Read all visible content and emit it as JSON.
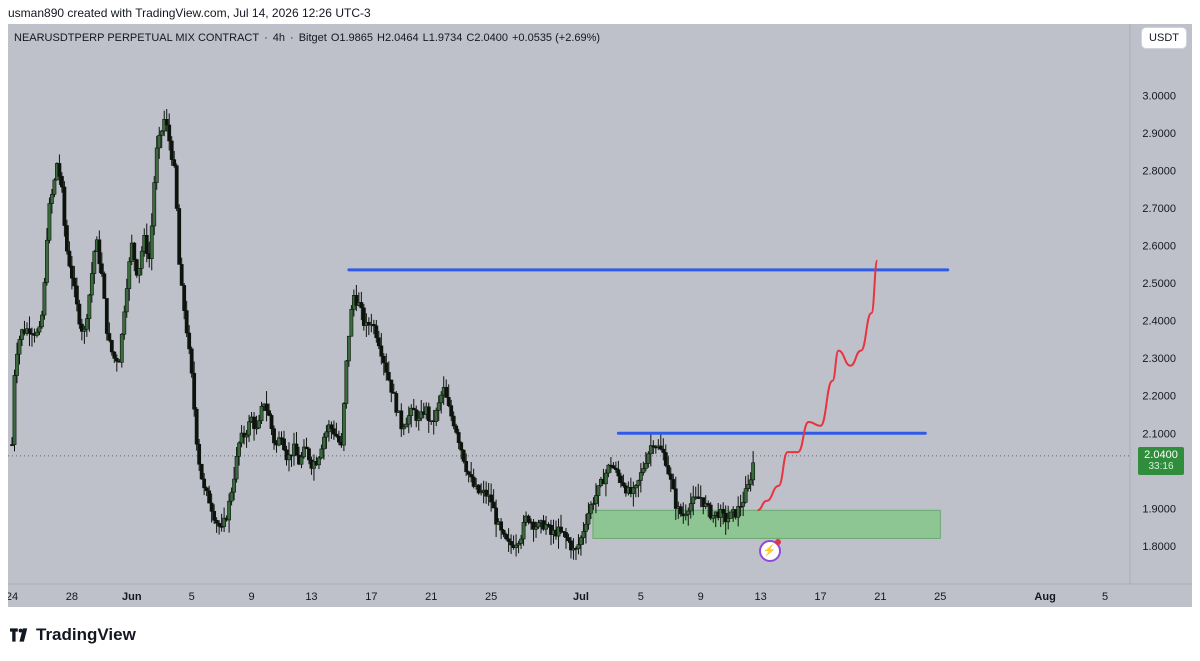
{
  "caption": "usman890 created with TradingView.com, Jul 14, 2026 12:26 UTC-3",
  "legend": {
    "symbol": "NEARUSDTPERP PERPETUAL MIX CONTRACT",
    "interval": "4h",
    "exchange": "Bitget",
    "open": "O1.9865",
    "high": "H2.0464",
    "low": "L1.9734",
    "close": "C2.0400",
    "change": "+0.0535 (+2.69%)"
  },
  "currency_button": "USDT",
  "last_price": "2.0400",
  "countdown": "33:16",
  "brand": "TradingView",
  "colors": {
    "background": "#bfc1ca",
    "candle": "#0d130d",
    "candle_up_body": "#3a6b3c",
    "resistance_line": "#2f5be8",
    "projection": "#e8343f",
    "demand_zone": "#85c78a",
    "price_tag": "#2f8d3b"
  },
  "chart_data": {
    "type": "candlestick",
    "title": "",
    "xlabel": "",
    "ylabel": "",
    "ylim": [
      1.72,
      3.07
    ],
    "y_ticks": [
      "3.0000",
      "2.9000",
      "2.8000",
      "2.7000",
      "2.6000",
      "2.5000",
      "2.4000",
      "2.3000",
      "2.2000",
      "2.1000",
      "1.9000",
      "1.8000"
    ],
    "x_ticks": [
      "24",
      "28",
      "Jun",
      "5",
      "9",
      "13",
      "17",
      "21",
      "25",
      "Jul",
      "5",
      "9",
      "13",
      "17",
      "21",
      "25",
      "Aug",
      "5"
    ],
    "x_range_days": [
      0,
      73
    ],
    "x_tick_days": [
      0,
      4,
      8,
      12,
      16,
      20,
      24,
      28,
      32,
      38,
      42,
      46,
      50,
      54,
      58,
      62,
      69,
      73
    ],
    "price_path": [
      [
        0,
        2.07
      ],
      [
        0.2,
        2.3
      ],
      [
        0.6,
        2.37
      ],
      [
        1.2,
        2.38
      ],
      [
        1.8,
        2.36
      ],
      [
        2.1,
        2.44
      ],
      [
        2.4,
        2.68
      ],
      [
        2.8,
        2.76
      ],
      [
        3.0,
        2.82
      ],
      [
        3.3,
        2.76
      ],
      [
        3.6,
        2.6
      ],
      [
        4.0,
        2.52
      ],
      [
        4.4,
        2.42
      ],
      [
        4.8,
        2.36
      ],
      [
        5.2,
        2.48
      ],
      [
        5.6,
        2.62
      ],
      [
        6.0,
        2.52
      ],
      [
        6.4,
        2.35
      ],
      [
        6.8,
        2.3
      ],
      [
        7.2,
        2.3
      ],
      [
        7.6,
        2.48
      ],
      [
        8.0,
        2.6
      ],
      [
        8.4,
        2.52
      ],
      [
        8.8,
        2.62
      ],
      [
        9.2,
        2.56
      ],
      [
        9.6,
        2.84
      ],
      [
        10.2,
        2.94
      ],
      [
        10.6,
        2.86
      ],
      [
        10.9,
        2.78
      ],
      [
        11.2,
        2.52
      ],
      [
        11.6,
        2.4
      ],
      [
        12.0,
        2.25
      ],
      [
        12.4,
        2.05
      ],
      [
        12.8,
        1.95
      ],
      [
        13.2,
        1.92
      ],
      [
        13.6,
        1.87
      ],
      [
        14.0,
        1.84
      ],
      [
        14.4,
        1.89
      ],
      [
        14.8,
        1.98
      ],
      [
        15.2,
        2.08
      ],
      [
        15.6,
        2.1
      ],
      [
        16.0,
        2.14
      ],
      [
        16.4,
        2.1
      ],
      [
        16.8,
        2.19
      ],
      [
        17.2,
        2.14
      ],
      [
        17.6,
        2.06
      ],
      [
        18.0,
        2.1
      ],
      [
        18.4,
        2.03
      ],
      [
        18.8,
        2.06
      ],
      [
        19.2,
        2.02
      ],
      [
        19.6,
        2.06
      ],
      [
        20.0,
        2.02
      ],
      [
        20.4,
        2.03
      ],
      [
        20.8,
        2.09
      ],
      [
        21.2,
        2.12
      ],
      [
        21.6,
        2.1
      ],
      [
        22.0,
        2.06
      ],
      [
        22.4,
        2.33
      ],
      [
        22.8,
        2.47
      ],
      [
        23.2,
        2.44
      ],
      [
        23.6,
        2.38
      ],
      [
        24.0,
        2.4
      ],
      [
        24.4,
        2.36
      ],
      [
        24.8,
        2.3
      ],
      [
        25.2,
        2.24
      ],
      [
        25.6,
        2.18
      ],
      [
        26.0,
        2.12
      ],
      [
        26.4,
        2.14
      ],
      [
        26.8,
        2.16
      ],
      [
        27.2,
        2.13
      ],
      [
        27.6,
        2.17
      ],
      [
        28.0,
        2.12
      ],
      [
        28.4,
        2.16
      ],
      [
        28.8,
        2.22
      ],
      [
        29.2,
        2.16
      ],
      [
        29.6,
        2.12
      ],
      [
        30.0,
        2.06
      ],
      [
        30.4,
        2.0
      ],
      [
        30.8,
        1.96
      ],
      [
        31.2,
        1.94
      ],
      [
        31.6,
        1.94
      ],
      [
        32.0,
        1.92
      ],
      [
        32.4,
        1.86
      ],
      [
        32.8,
        1.82
      ],
      [
        33.2,
        1.8
      ],
      [
        33.6,
        1.81
      ],
      [
        34.0,
        1.83
      ],
      [
        34.4,
        1.88
      ],
      [
        34.8,
        1.86
      ],
      [
        35.2,
        1.85
      ],
      [
        35.6,
        1.86
      ],
      [
        36.0,
        1.83
      ],
      [
        36.4,
        1.84
      ],
      [
        36.8,
        1.83
      ],
      [
        37.2,
        1.81
      ],
      [
        37.6,
        1.78
      ],
      [
        38.0,
        1.82
      ],
      [
        38.4,
        1.88
      ],
      [
        38.8,
        1.92
      ],
      [
        39.2,
        1.95
      ],
      [
        39.6,
        1.99
      ],
      [
        40.0,
        2.02
      ],
      [
        40.4,
        1.99
      ],
      [
        40.8,
        1.97
      ],
      [
        41.2,
        1.94
      ],
      [
        41.6,
        1.94
      ],
      [
        42.0,
        1.99
      ],
      [
        42.4,
        2.04
      ],
      [
        42.8,
        2.08
      ],
      [
        43.2,
        2.06
      ],
      [
        43.6,
        2.04
      ],
      [
        44.0,
        1.97
      ],
      [
        44.4,
        1.9
      ],
      [
        44.8,
        1.88
      ],
      [
        45.2,
        1.91
      ],
      [
        45.6,
        1.92
      ],
      [
        46.0,
        1.93
      ],
      [
        46.4,
        1.9
      ],
      [
        46.8,
        1.88
      ],
      [
        47.2,
        1.89
      ],
      [
        47.6,
        1.87
      ],
      [
        48.0,
        1.88
      ],
      [
        48.4,
        1.89
      ],
      [
        48.8,
        1.92
      ],
      [
        49.2,
        1.96
      ],
      [
        49.6,
        2.04
      ]
    ],
    "annotations": [
      {
        "type": "horizontal_line",
        "label": "resistance",
        "y": 2.535,
        "x_from": 22.5,
        "x_to": 62.5
      },
      {
        "type": "horizontal_line",
        "label": "resistance",
        "y": 2.1,
        "x_from": 40.5,
        "x_to": 61
      },
      {
        "type": "rectangle",
        "label": "demand zone",
        "y_from": 1.82,
        "y_to": 1.895,
        "x_from": 38.8,
        "x_to": 62.0
      },
      {
        "type": "projection_path",
        "points": [
          [
            49.8,
            1.895
          ],
          [
            50.4,
            1.92
          ],
          [
            51.2,
            1.96
          ],
          [
            51.8,
            2.05
          ],
          [
            52.5,
            2.05
          ],
          [
            53.2,
            2.13
          ],
          [
            54.0,
            2.12
          ],
          [
            54.8,
            2.24
          ],
          [
            55.2,
            2.32
          ],
          [
            56.0,
            2.28
          ],
          [
            56.7,
            2.32
          ],
          [
            57.4,
            2.42
          ],
          [
            57.8,
            2.56
          ]
        ]
      },
      {
        "type": "price_line",
        "y": 2.04
      }
    ]
  }
}
